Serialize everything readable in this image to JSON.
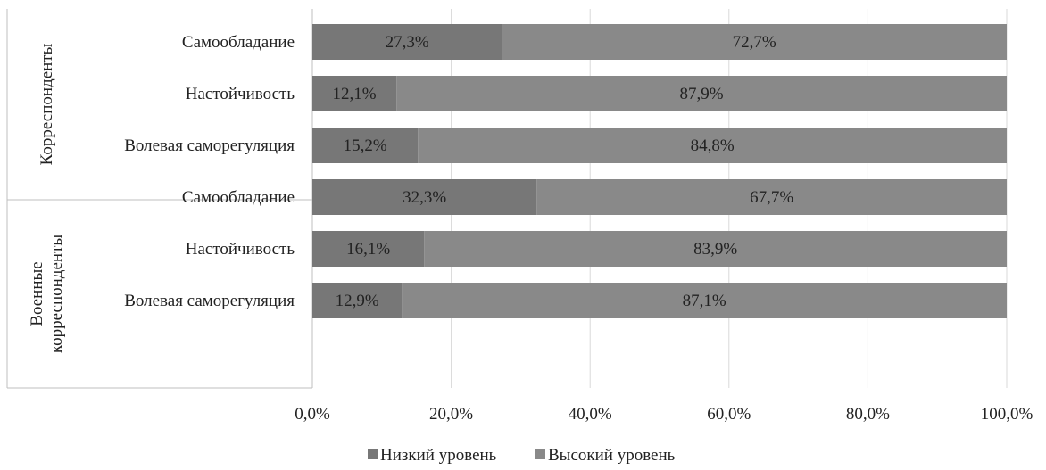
{
  "chart_data": {
    "type": "bar",
    "orientation": "horizontal",
    "stacked": true,
    "groups": [
      {
        "label": "Корреспонденты",
        "categories": [
          "Самообладание",
          "Настойчивость",
          "Волевая саморегуляция"
        ]
      },
      {
        "label": "Военные корреспонденты",
        "label_lines": [
          "Военные",
          "корреспонденты"
        ],
        "categories": [
          "Самообладание",
          "Настойчивость",
          "Волевая саморегуляция"
        ]
      }
    ],
    "series": [
      {
        "name": "Низкий уровень",
        "color": "#777777",
        "values": [
          27.3,
          12.1,
          15.2,
          32.3,
          16.1,
          12.9
        ],
        "labels": [
          "27,3%",
          "12,1%",
          "15,2%",
          "32,3%",
          "16,1%",
          "12,9%"
        ]
      },
      {
        "name": "Высокий уровень",
        "color": "#898989",
        "values": [
          72.7,
          87.9,
          84.8,
          67.7,
          83.9,
          87.1
        ],
        "labels": [
          "72,7%",
          "87,9%",
          "84,8%",
          "67,7%",
          "83,9%",
          "87,1%"
        ]
      }
    ],
    "xlim": [
      0,
      100
    ],
    "xticks": [
      0,
      20,
      40,
      60,
      80,
      100
    ],
    "xtick_labels": [
      "0,0%",
      "20,0%",
      "40,0%",
      "60,0%",
      "80,0%",
      "100,0%"
    ],
    "grid": "vertical",
    "legend": "bottom-center"
  }
}
